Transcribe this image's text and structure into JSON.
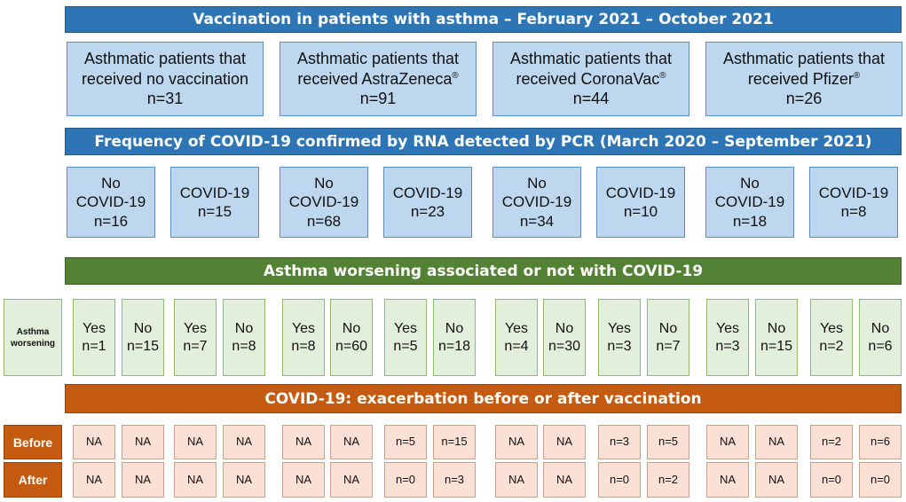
{
  "banners": {
    "vaccination": "Vaccination in patients with asthma – February 2021 – October 2021",
    "frequency": "Frequency of COVID-19 confirmed by RNA detected by PCR (March 2020 – September 2021)",
    "worsening": "Asthma worsening associated or not with COVID-19",
    "exacerbation": "COVID-19: exacerbation before or after vaccination"
  },
  "groups": [
    {
      "line1": "Asthmatic patients that",
      "line2": "received no vaccination",
      "mark": "",
      "n": "n=31"
    },
    {
      "line1": "Asthmatic patients that",
      "line2": "received AstraZeneca",
      "mark": "®",
      "n": "n=91"
    },
    {
      "line1": "Asthmatic patients that",
      "line2": "received CoronaVac",
      "mark": "®",
      "n": "n=44"
    },
    {
      "line1": "Asthmatic patients that",
      "line2": "received Pfizer",
      "mark": "®",
      "n": "n=26"
    }
  ],
  "covid": [
    {
      "label1": "No",
      "label2": "COVID-19",
      "n": "n=16"
    },
    {
      "label1": "COVID-19",
      "label2": "",
      "n": "n=15"
    },
    {
      "label1": "No",
      "label2": "COVID-19",
      "n": "n=68"
    },
    {
      "label1": "COVID-19",
      "label2": "",
      "n": "n=23"
    },
    {
      "label1": "No",
      "label2": "COVID-19",
      "n": "n=34"
    },
    {
      "label1": "COVID-19",
      "label2": "",
      "n": "n=10"
    },
    {
      "label1": "No",
      "label2": "COVID-19",
      "n": "n=18"
    },
    {
      "label1": "COVID-19",
      "label2": "",
      "n": "n=8"
    }
  ],
  "worsening_label": [
    "Asthma",
    "worsening"
  ],
  "worsening": [
    {
      "label": "Yes",
      "n": "n=1"
    },
    {
      "label": "No",
      "n": "n=15"
    },
    {
      "label": "Yes",
      "n": "n=7"
    },
    {
      "label": "No",
      "n": "n=8"
    },
    {
      "label": "Yes",
      "n": "n=8"
    },
    {
      "label": "No",
      "n": "n=60"
    },
    {
      "label": "Yes",
      "n": "n=5"
    },
    {
      "label": "No",
      "n": "n=18"
    },
    {
      "label": "Yes",
      "n": "n=4"
    },
    {
      "label": "No",
      "n": "n=30"
    },
    {
      "label": "Yes",
      "n": "n=3"
    },
    {
      "label": "No",
      "n": "n=7"
    },
    {
      "label": "Yes",
      "n": "n=3"
    },
    {
      "label": "No",
      "n": "n=15"
    },
    {
      "label": "Yes",
      "n": "n=2"
    },
    {
      "label": "No",
      "n": "n=6"
    }
  ],
  "before_label": "Before",
  "after_label": "After",
  "before": [
    "NA",
    "NA",
    "NA",
    "NA",
    "NA",
    "NA",
    "n=5",
    "n=15",
    "NA",
    "NA",
    "n=3",
    "n=5",
    "NA",
    "NA",
    "n=2",
    "n=6"
  ],
  "after": [
    "NA",
    "NA",
    "NA",
    "NA",
    "NA",
    "NA",
    "n=0",
    "n=3",
    "NA",
    "NA",
    "n=0",
    "n=2",
    "NA",
    "NA",
    "n=0",
    "n=0"
  ]
}
